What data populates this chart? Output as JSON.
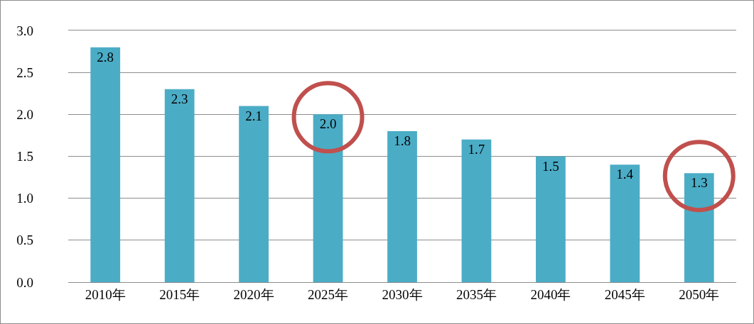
{
  "chart_data": {
    "type": "bar",
    "categories": [
      "2010年",
      "2015年",
      "2020年",
      "2025年",
      "2030年",
      "2035年",
      "2040年",
      "2045年",
      "2050年"
    ],
    "values": [
      2.8,
      2.3,
      2.1,
      2.0,
      1.8,
      1.7,
      1.5,
      1.4,
      1.3
    ],
    "color": "#4bacc6",
    "ylim": [
      0,
      3.0
    ],
    "yticks": [
      {
        "value": 0,
        "label": "0.0"
      },
      {
        "value": 0.5,
        "label": "0.5"
      },
      {
        "value": 1,
        "label": "1.0"
      },
      {
        "value": 1.5,
        "label": "1.5"
      },
      {
        "value": 2,
        "label": "2.0"
      },
      {
        "value": 2.5,
        "label": "2.5"
      },
      {
        "value": 3,
        "label": "3.0"
      }
    ],
    "grid": "y",
    "value_labels": [
      "2.8",
      "2.3",
      "2.1",
      "2.0",
      "1.8",
      "1.7",
      "1.5",
      "1.4",
      "1.3"
    ],
    "legend": false
  }
}
